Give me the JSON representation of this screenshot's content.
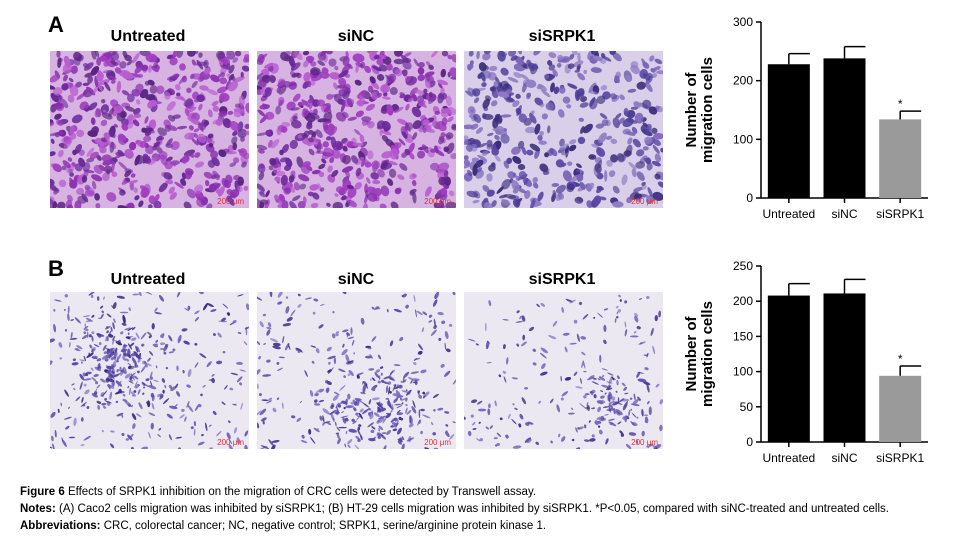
{
  "panels": [
    {
      "letter": "A",
      "titles": [
        "Untreated",
        "siNC",
        "siSRPK1"
      ],
      "scale_labels": [
        "200 μm",
        "200 μm",
        "200 μm"
      ]
    },
    {
      "letter": "B",
      "titles": [
        "Untreated",
        "siNC",
        "siSRPK1"
      ],
      "scale_labels": [
        "200 μm",
        "200 μm",
        "200 μm"
      ]
    }
  ],
  "chart_data": [
    {
      "type": "bar",
      "categories": [
        "Untreated",
        "siNC",
        "siSRPK1"
      ],
      "values": [
        228,
        238,
        134
      ],
      "errors": [
        18,
        20,
        14
      ],
      "colors": [
        "#000000",
        "#000000",
        "#9a9a9a"
      ],
      "ylabel": "Number of migration cells",
      "ylim": [
        0,
        300
      ],
      "yticks": [
        "0",
        "100",
        "200",
        "300"
      ],
      "annotation": "*"
    },
    {
      "type": "bar",
      "categories": [
        "Untreated",
        "siNC",
        "siSRPK1"
      ],
      "values": [
        208,
        211,
        94
      ],
      "errors": [
        17,
        20,
        14
      ],
      "colors": [
        "#000000",
        "#000000",
        "#9a9a9a"
      ],
      "ylabel": "Number of migration cells",
      "ylim": [
        0,
        250
      ],
      "yticks": [
        "0",
        "50",
        "100",
        "150",
        "200",
        "250"
      ],
      "annotation": "*"
    }
  ],
  "caption": {
    "figure_label": "Figure 6",
    "figure_text": "Effects of SRPK1 inhibition on the migration of CRC cells were detected by Transwell assay.",
    "notes_label": "Notes:",
    "notes_text": "(A) Caco2 cells migration was inhibited by siSRPK1; (B) HT-29 cells migration was inhibited by siSRPK1. *P<0.05, compared with siNC-treated and untreated cells.",
    "abbr_label": "Abbreviations:",
    "abbr_text": "CRC, colorectal cancer; NC, negative control; SRPK1, serine/arginine protein kinase 1."
  }
}
